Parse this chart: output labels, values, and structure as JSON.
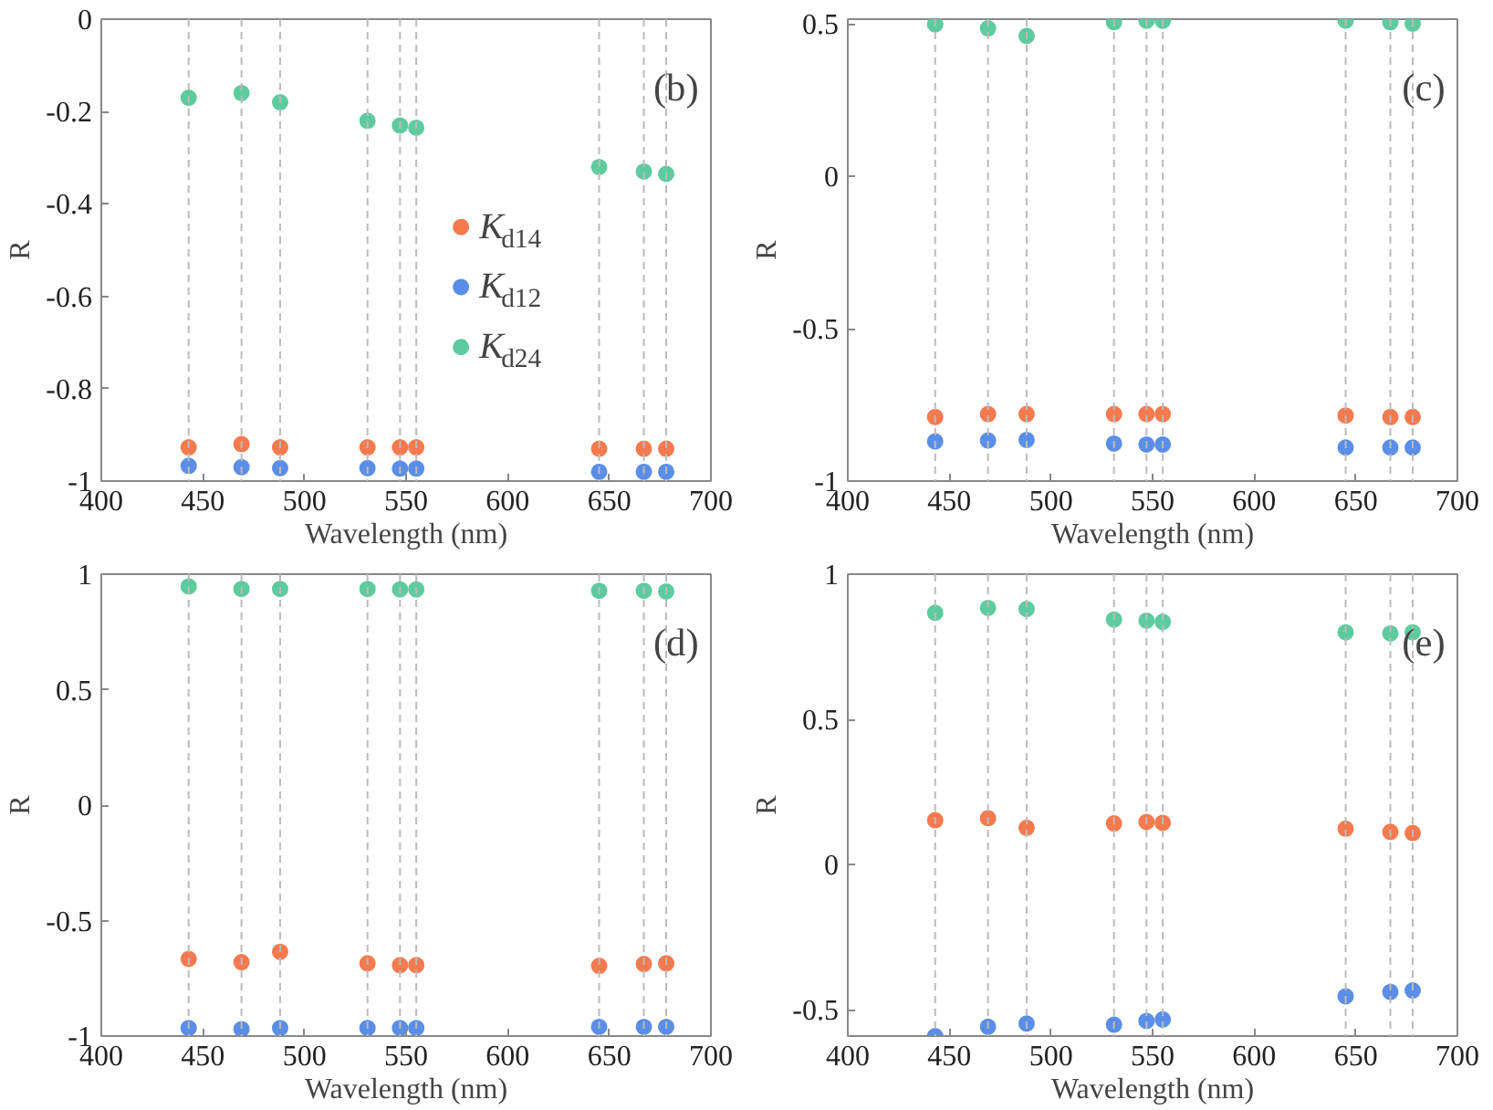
{
  "chart_data": [
    {
      "type": "scatter",
      "annotations": [
        "(b)"
      ],
      "xlabel": "Wavelength (nm)",
      "ylabel": "R",
      "marker": "circle",
      "grid": false,
      "legend": "right",
      "x": [
        443,
        469,
        488,
        531,
        547,
        555,
        645,
        667,
        678
      ],
      "xlim": [
        400,
        700
      ],
      "xticks": [
        400,
        450,
        500,
        550,
        600,
        650,
        700
      ],
      "ylim": [
        -1,
        0
      ],
      "yticks": [
        -1,
        -0.8,
        -0.6,
        -0.4,
        -0.2,
        0
      ],
      "series": [
        {
          "name": "K$_{d14}$",
          "color": "#f47a4f",
          "values": [
            -0.927,
            -0.92,
            -0.927,
            -0.927,
            -0.927,
            -0.927,
            -0.93,
            -0.93,
            -0.93
          ]
        },
        {
          "name": "K$_{d12}$",
          "color": "#5b8ee6",
          "values": [
            -0.967,
            -0.97,
            -0.972,
            -0.972,
            -0.973,
            -0.973,
            -0.98,
            -0.98,
            -0.98
          ]
        },
        {
          "name": "K$_{d24}$",
          "color": "#5ecb9e",
          "values": [
            -0.17,
            -0.16,
            -0.18,
            -0.22,
            -0.23,
            -0.235,
            -0.32,
            -0.33,
            -0.335
          ]
        }
      ],
      "ref_lines": [
        {
          "axis": "x",
          "value": 443,
          "color": "#bbbbbb",
          "line_style": "dashed"
        },
        {
          "axis": "x",
          "value": 469,
          "color": "#bbbbbb",
          "line_style": "dashed"
        },
        {
          "axis": "x",
          "value": 488,
          "color": "#bbbbbb",
          "line_style": "dashed"
        },
        {
          "axis": "x",
          "value": 531,
          "color": "#bbbbbb",
          "line_style": "dashed"
        },
        {
          "axis": "x",
          "value": 547,
          "color": "#bbbbbb",
          "line_style": "dashed"
        },
        {
          "axis": "x",
          "value": 555,
          "color": "#bbbbbb",
          "line_style": "dashed"
        },
        {
          "axis": "x",
          "value": 645,
          "color": "#bbbbbb",
          "line_style": "dashed"
        },
        {
          "axis": "x",
          "value": 667,
          "color": "#bbbbbb",
          "line_style": "dashed"
        },
        {
          "axis": "x",
          "value": 678,
          "color": "#bbbbbb",
          "line_style": "dashed"
        }
      ]
    },
    {
      "type": "scatter",
      "annotations": [
        "(c)"
      ],
      "xlabel": "Wavelength (nm)",
      "ylabel": "R",
      "marker": "circle",
      "grid": false,
      "x": [
        443,
        469,
        488,
        531,
        547,
        555,
        645,
        667,
        678
      ],
      "xlim": [
        400,
        700
      ],
      "xticks": [
        400,
        450,
        500,
        550,
        600,
        650,
        700
      ],
      "ylim": [
        -1,
        0.515
      ],
      "yticks": [
        -1,
        -0.5,
        0,
        0.5
      ],
      "series": [
        {
          "color": "#f47a4f",
          "values": [
            -0.79,
            -0.78,
            -0.78,
            -0.78,
            -0.78,
            -0.78,
            -0.785,
            -0.79,
            -0.79
          ]
        },
        {
          "color": "#5b8ee6",
          "values": [
            -0.87,
            -0.867,
            -0.865,
            -0.877,
            -0.88,
            -0.88,
            -0.89,
            -0.89,
            -0.89
          ]
        },
        {
          "color": "#5ecb9e",
          "values": [
            0.498,
            0.485,
            0.46,
            0.505,
            0.51,
            0.51,
            0.51,
            0.505,
            0.5
          ]
        }
      ],
      "ref_lines": [
        {
          "axis": "x",
          "value": 443,
          "color": "#bbbbbb",
          "line_style": "dashed"
        },
        {
          "axis": "x",
          "value": 469,
          "color": "#bbbbbb",
          "line_style": "dashed"
        },
        {
          "axis": "x",
          "value": 488,
          "color": "#bbbbbb",
          "line_style": "dashed"
        },
        {
          "axis": "x",
          "value": 531,
          "color": "#bbbbbb",
          "line_style": "dashed"
        },
        {
          "axis": "x",
          "value": 547,
          "color": "#bbbbbb",
          "line_style": "dashed"
        },
        {
          "axis": "x",
          "value": 555,
          "color": "#bbbbbb",
          "line_style": "dashed"
        },
        {
          "axis": "x",
          "value": 645,
          "color": "#bbbbbb",
          "line_style": "dashed"
        },
        {
          "axis": "x",
          "value": 667,
          "color": "#bbbbbb",
          "line_style": "dashed"
        },
        {
          "axis": "x",
          "value": 678,
          "color": "#bbbbbb",
          "line_style": "dashed"
        }
      ]
    },
    {
      "type": "scatter",
      "annotations": [
        "(d)"
      ],
      "xlabel": "Wavelength (nm)",
      "ylabel": "R",
      "marker": "circle",
      "grid": false,
      "x": [
        443,
        469,
        488,
        531,
        547,
        555,
        645,
        667,
        678
      ],
      "xlim": [
        400,
        700
      ],
      "xticks": [
        400,
        450,
        500,
        550,
        600,
        650,
        700
      ],
      "ylim": [
        -1,
        1
      ],
      "yticks": [
        -1,
        -0.5,
        0,
        0.5,
        1
      ],
      "series": [
        {
          "color": "#f47a4f",
          "values": [
            -0.666,
            -0.68,
            -0.635,
            -0.685,
            -0.693,
            -0.693,
            -0.696,
            -0.688,
            -0.685
          ]
        },
        {
          "color": "#5b8ee6",
          "values": [
            -0.965,
            -0.97,
            -0.965,
            -0.965,
            -0.965,
            -0.965,
            -0.96,
            -0.96,
            -0.96
          ]
        },
        {
          "color": "#5ecb9e",
          "values": [
            0.947,
            0.936,
            0.936,
            0.936,
            0.934,
            0.934,
            0.928,
            0.928,
            0.925
          ]
        }
      ],
      "ref_lines": [
        {
          "axis": "x",
          "value": 443,
          "color": "#bbbbbb",
          "line_style": "dashed"
        },
        {
          "axis": "x",
          "value": 469,
          "color": "#bbbbbb",
          "line_style": "dashed"
        },
        {
          "axis": "x",
          "value": 488,
          "color": "#bbbbbb",
          "line_style": "dashed"
        },
        {
          "axis": "x",
          "value": 531,
          "color": "#bbbbbb",
          "line_style": "dashed"
        },
        {
          "axis": "x",
          "value": 547,
          "color": "#bbbbbb",
          "line_style": "dashed"
        },
        {
          "axis": "x",
          "value": 555,
          "color": "#bbbbbb",
          "line_style": "dashed"
        },
        {
          "axis": "x",
          "value": 645,
          "color": "#bbbbbb",
          "line_style": "dashed"
        },
        {
          "axis": "x",
          "value": 667,
          "color": "#bbbbbb",
          "line_style": "dashed"
        },
        {
          "axis": "x",
          "value": 678,
          "color": "#bbbbbb",
          "line_style": "dashed"
        }
      ]
    },
    {
      "type": "scatter",
      "annotations": [
        "(e)"
      ],
      "xlabel": "Wavelength (nm)",
      "ylabel": "R",
      "marker": "circle",
      "grid": false,
      "x": [
        443,
        469,
        488,
        531,
        547,
        555,
        645,
        667,
        678
      ],
      "xlim": [
        400,
        700
      ],
      "xticks": [
        400,
        450,
        500,
        550,
        600,
        650,
        700
      ],
      "ylim": [
        -0.59,
        1
      ],
      "yticks": [
        -0.5,
        0,
        0.5,
        1
      ],
      "series": [
        {
          "color": "#f47a4f",
          "values": [
            0.153,
            0.16,
            0.127,
            0.142,
            0.147,
            0.144,
            0.124,
            0.113,
            0.109
          ]
        },
        {
          "color": "#5b8ee6",
          "values": [
            -0.59,
            -0.558,
            -0.547,
            -0.551,
            -0.538,
            -0.533,
            -0.453,
            -0.438,
            -0.433
          ]
        },
        {
          "color": "#5ecb9e",
          "values": [
            0.867,
            0.884,
            0.88,
            0.844,
            0.84,
            0.836,
            0.8,
            0.796,
            0.8
          ]
        }
      ],
      "ref_lines": [
        {
          "axis": "x",
          "value": 443,
          "color": "#bbbbbb",
          "line_style": "dashed"
        },
        {
          "axis": "x",
          "value": 469,
          "color": "#bbbbbb",
          "line_style": "dashed"
        },
        {
          "axis": "x",
          "value": 488,
          "color": "#bbbbbb",
          "line_style": "dashed"
        },
        {
          "axis": "x",
          "value": 531,
          "color": "#bbbbbb",
          "line_style": "dashed"
        },
        {
          "axis": "x",
          "value": 547,
          "color": "#bbbbbb",
          "line_style": "dashed"
        },
        {
          "axis": "x",
          "value": 555,
          "color": "#bbbbbb",
          "line_style": "dashed"
        },
        {
          "axis": "x",
          "value": 645,
          "color": "#bbbbbb",
          "line_style": "dashed"
        },
        {
          "axis": "x",
          "value": 667,
          "color": "#bbbbbb",
          "line_style": "dashed"
        },
        {
          "axis": "x",
          "value": 678,
          "color": "#bbbbbb",
          "line_style": "dashed"
        }
      ]
    }
  ]
}
